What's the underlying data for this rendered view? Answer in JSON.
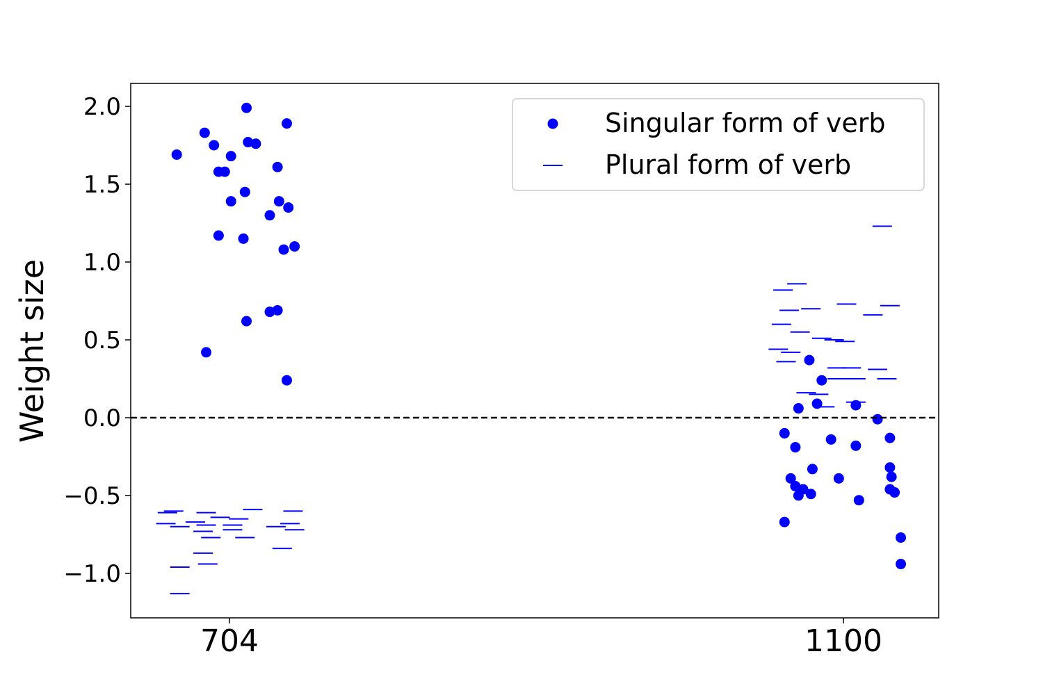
{
  "chart_data": {
    "type": "scatter",
    "xlabel": "",
    "ylabel": "Weight size",
    "ylim": [
      -1.29,
      2.15
    ],
    "yticks": [
      -1.0,
      -0.5,
      0.0,
      0.5,
      1.0,
      1.5,
      2.0
    ],
    "ytick_labels": [
      "−1.0",
      "−0.5",
      "0.0",
      "0.5",
      "1.0",
      "1.5",
      "2.0"
    ],
    "categories": [
      "704",
      "1100"
    ],
    "reference_line": {
      "y": 0.0,
      "style": "dashed",
      "color": "#000000"
    },
    "grid": false,
    "legend_position": "top-right",
    "series": [
      {
        "name": "Singular form of verb",
        "marker": "circle",
        "color": "#0000ff",
        "points": [
          {
            "x": 670,
            "y": 1.69
          },
          {
            "x": 688,
            "y": 1.83
          },
          {
            "x": 694,
            "y": 1.75
          },
          {
            "x": 697,
            "y": 1.58
          },
          {
            "x": 701,
            "y": 1.58
          },
          {
            "x": 705,
            "y": 1.68
          },
          {
            "x": 715,
            "y": 1.99
          },
          {
            "x": 716,
            "y": 1.77
          },
          {
            "x": 721,
            "y": 1.76
          },
          {
            "x": 735,
            "y": 1.61
          },
          {
            "x": 741,
            "y": 1.89
          },
          {
            "x": 714,
            "y": 1.45
          },
          {
            "x": 705,
            "y": 1.39
          },
          {
            "x": 736,
            "y": 1.39
          },
          {
            "x": 742,
            "y": 1.35
          },
          {
            "x": 730,
            "y": 1.3
          },
          {
            "x": 697,
            "y": 1.17
          },
          {
            "x": 713,
            "y": 1.15
          },
          {
            "x": 746,
            "y": 1.1
          },
          {
            "x": 739,
            "y": 1.08
          },
          {
            "x": 730,
            "y": 0.68
          },
          {
            "x": 735,
            "y": 0.69
          },
          {
            "x": 715,
            "y": 0.62
          },
          {
            "x": 689,
            "y": 0.42
          },
          {
            "x": 741,
            "y": 0.24
          },
          {
            "x": 1078,
            "y": 0.37
          },
          {
            "x": 1086,
            "y": 0.24
          },
          {
            "x": 1083,
            "y": 0.09
          },
          {
            "x": 1071,
            "y": 0.06
          },
          {
            "x": 1108,
            "y": 0.08
          },
          {
            "x": 1122,
            "y": -0.01
          },
          {
            "x": 1062,
            "y": -0.1
          },
          {
            "x": 1092,
            "y": -0.14
          },
          {
            "x": 1130,
            "y": -0.13
          },
          {
            "x": 1108,
            "y": -0.18
          },
          {
            "x": 1069,
            "y": -0.19
          },
          {
            "x": 1080,
            "y": -0.33
          },
          {
            "x": 1130,
            "y": -0.32
          },
          {
            "x": 1066,
            "y": -0.39
          },
          {
            "x": 1131,
            "y": -0.38
          },
          {
            "x": 1097,
            "y": -0.39
          },
          {
            "x": 1069,
            "y": -0.44
          },
          {
            "x": 1074,
            "y": -0.46
          },
          {
            "x": 1130,
            "y": -0.46
          },
          {
            "x": 1133,
            "y": -0.48
          },
          {
            "x": 1071,
            "y": -0.5
          },
          {
            "x": 1079,
            "y": -0.49
          },
          {
            "x": 1110,
            "y": -0.53
          },
          {
            "x": 1062,
            "y": -0.67
          },
          {
            "x": 1137,
            "y": -0.77
          },
          {
            "x": 1137,
            "y": -0.94
          }
        ]
      },
      {
        "name": "Plural form of verb",
        "marker": "hline",
        "color": "#0000ff",
        "points": [
          {
            "x": 664,
            "y": -0.61
          },
          {
            "x": 668,
            "y": -0.6
          },
          {
            "x": 689,
            "y": -0.61
          },
          {
            "x": 719,
            "y": -0.59
          },
          {
            "x": 745,
            "y": -0.6
          },
          {
            "x": 698,
            "y": -0.64
          },
          {
            "x": 710,
            "y": -0.65
          },
          {
            "x": 682,
            "y": -0.67
          },
          {
            "x": 689,
            "y": -0.69
          },
          {
            "x": 706,
            "y": -0.69
          },
          {
            "x": 706,
            "y": -0.72
          },
          {
            "x": 663,
            "y": -0.68
          },
          {
            "x": 672,
            "y": -0.7
          },
          {
            "x": 687,
            "y": -0.73
          },
          {
            "x": 692,
            "y": -0.77
          },
          {
            "x": 714,
            "y": -0.77
          },
          {
            "x": 734,
            "y": -0.7
          },
          {
            "x": 743,
            "y": -0.68
          },
          {
            "x": 746,
            "y": -0.72
          },
          {
            "x": 738,
            "y": -0.84
          },
          {
            "x": 687,
            "y": -0.87
          },
          {
            "x": 690,
            "y": -0.94
          },
          {
            "x": 672,
            "y": -0.96
          },
          {
            "x": 672,
            "y": -1.13
          },
          {
            "x": 1125,
            "y": 1.23
          },
          {
            "x": 1061,
            "y": 0.82
          },
          {
            "x": 1070,
            "y": 0.86
          },
          {
            "x": 1065,
            "y": 0.69
          },
          {
            "x": 1079,
            "y": 0.7
          },
          {
            "x": 1102,
            "y": 0.73
          },
          {
            "x": 1130,
            "y": 0.72
          },
          {
            "x": 1119,
            "y": 0.66
          },
          {
            "x": 1060,
            "y": 0.6
          },
          {
            "x": 1072,
            "y": 0.55
          },
          {
            "x": 1086,
            "y": 0.51
          },
          {
            "x": 1094,
            "y": 0.5
          },
          {
            "x": 1101,
            "y": 0.49
          },
          {
            "x": 1058,
            "y": 0.44
          },
          {
            "x": 1066,
            "y": 0.42
          },
          {
            "x": 1063,
            "y": 0.36
          },
          {
            "x": 1096,
            "y": 0.32
          },
          {
            "x": 1105,
            "y": 0.32
          },
          {
            "x": 1122,
            "y": 0.31
          },
          {
            "x": 1096,
            "y": 0.25
          },
          {
            "x": 1108,
            "y": 0.25
          },
          {
            "x": 1128,
            "y": 0.25
          },
          {
            "x": 1076,
            "y": 0.16
          },
          {
            "x": 1084,
            "y": 0.15
          },
          {
            "x": 1108,
            "y": 0.1
          },
          {
            "x": 1088,
            "y": 0.07
          }
        ]
      }
    ]
  }
}
